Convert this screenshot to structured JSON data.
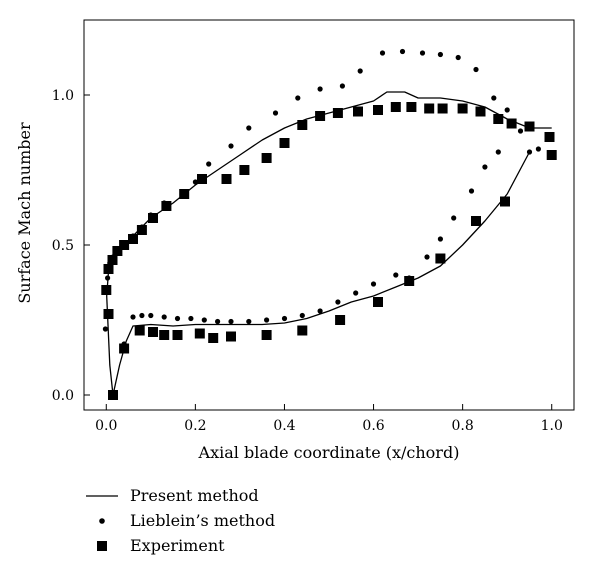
{
  "chart_data": {
    "type": "line",
    "title": "",
    "xlabel": "Axial blade coordinate (x/chord)",
    "ylabel": "Surface Mach number",
    "xlim": [
      -0.05,
      1.05
    ],
    "ylim": [
      -0.05,
      1.25
    ],
    "xticks": [
      0.0,
      0.2,
      0.4,
      0.6,
      0.8,
      1.0
    ],
    "yticks": [
      0.0,
      0.5,
      1.0
    ],
    "xtick_labels": [
      "0.0",
      "0.2",
      "0.4",
      "0.6",
      "0.8",
      "1.0"
    ],
    "ytick_labels": [
      "0.0",
      "0.5",
      "1.0"
    ],
    "grid": false,
    "legend_position": "bottom-left-outside",
    "series": [
      {
        "name": "Present method",
        "style": "line",
        "color": "#000000",
        "points": [
          [
            0.001,
            0.33
          ],
          [
            0.006,
            0.43
          ],
          [
            0.012,
            0.46
          ],
          [
            0.02,
            0.47
          ],
          [
            0.035,
            0.49
          ],
          [
            0.06,
            0.53
          ],
          [
            0.1,
            0.59
          ],
          [
            0.15,
            0.64
          ],
          [
            0.2,
            0.7
          ],
          [
            0.25,
            0.75
          ],
          [
            0.3,
            0.8
          ],
          [
            0.35,
            0.85
          ],
          [
            0.4,
            0.89
          ],
          [
            0.45,
            0.92
          ],
          [
            0.5,
            0.94
          ],
          [
            0.55,
            0.96
          ],
          [
            0.6,
            0.98
          ],
          [
            0.63,
            1.01
          ],
          [
            0.67,
            1.01
          ],
          [
            0.7,
            0.99
          ],
          [
            0.75,
            0.99
          ],
          [
            0.8,
            0.98
          ],
          [
            0.85,
            0.96
          ],
          [
            0.9,
            0.92
          ],
          [
            0.95,
            0.89
          ],
          [
            1.0,
            0.89
          ]
        ],
        "points_lower": [
          [
            0.001,
            0.33
          ],
          [
            0.008,
            0.1
          ],
          [
            0.015,
            0.0
          ],
          [
            0.03,
            0.1
          ],
          [
            0.045,
            0.18
          ],
          [
            0.06,
            0.23
          ],
          [
            0.1,
            0.235
          ],
          [
            0.15,
            0.23
          ],
          [
            0.2,
            0.235
          ],
          [
            0.25,
            0.235
          ],
          [
            0.3,
            0.235
          ],
          [
            0.35,
            0.235
          ],
          [
            0.4,
            0.24
          ],
          [
            0.45,
            0.255
          ],
          [
            0.5,
            0.28
          ],
          [
            0.55,
            0.31
          ],
          [
            0.6,
            0.33
          ],
          [
            0.65,
            0.36
          ],
          [
            0.7,
            0.39
          ],
          [
            0.75,
            0.43
          ],
          [
            0.8,
            0.5
          ],
          [
            0.85,
            0.58
          ],
          [
            0.9,
            0.67
          ],
          [
            0.95,
            0.81
          ]
        ]
      },
      {
        "name": "Lieblein’s method",
        "style": "dots",
        "color": "#000000",
        "points": [
          [
            -0.002,
            0.22
          ],
          [
            0.003,
            0.39
          ],
          [
            0.008,
            0.44
          ],
          [
            0.015,
            0.46
          ],
          [
            0.025,
            0.48
          ],
          [
            0.04,
            0.5
          ],
          [
            0.06,
            0.53
          ],
          [
            0.08,
            0.56
          ],
          [
            0.1,
            0.6
          ],
          [
            0.13,
            0.64
          ],
          [
            0.17,
            0.67
          ],
          [
            0.2,
            0.71
          ],
          [
            0.23,
            0.77
          ],
          [
            0.28,
            0.83
          ],
          [
            0.32,
            0.89
          ],
          [
            0.38,
            0.94
          ],
          [
            0.43,
            0.99
          ],
          [
            0.48,
            1.02
          ],
          [
            0.53,
            1.03
          ],
          [
            0.57,
            1.08
          ],
          [
            0.62,
            1.14
          ],
          [
            0.665,
            1.145
          ],
          [
            0.71,
            1.14
          ],
          [
            0.75,
            1.135
          ],
          [
            0.79,
            1.125
          ],
          [
            0.83,
            1.085
          ],
          [
            0.87,
            0.99
          ],
          [
            0.9,
            0.95
          ],
          [
            0.93,
            0.88
          ],
          [
            0.04,
            0.17
          ],
          [
            0.06,
            0.26
          ],
          [
            0.08,
            0.265
          ],
          [
            0.1,
            0.265
          ],
          [
            0.13,
            0.26
          ],
          [
            0.16,
            0.255
          ],
          [
            0.19,
            0.255
          ],
          [
            0.22,
            0.25
          ],
          [
            0.25,
            0.245
          ],
          [
            0.28,
            0.245
          ],
          [
            0.32,
            0.245
          ],
          [
            0.36,
            0.25
          ],
          [
            0.4,
            0.255
          ],
          [
            0.44,
            0.265
          ],
          [
            0.48,
            0.28
          ],
          [
            0.52,
            0.31
          ],
          [
            0.56,
            0.34
          ],
          [
            0.6,
            0.37
          ],
          [
            0.65,
            0.4
          ],
          [
            0.68,
            0.39
          ],
          [
            0.72,
            0.46
          ],
          [
            0.75,
            0.52
          ],
          [
            0.78,
            0.59
          ],
          [
            0.82,
            0.68
          ],
          [
            0.85,
            0.76
          ],
          [
            0.88,
            0.81
          ],
          [
            0.95,
            0.81
          ],
          [
            0.97,
            0.82
          ]
        ]
      },
      {
        "name": "Experiment",
        "style": "squares",
        "color": "#000000",
        "points": [
          [
            0.0,
            0.35
          ],
          [
            0.005,
            0.42
          ],
          [
            0.014,
            0.45
          ],
          [
            0.025,
            0.48
          ],
          [
            0.04,
            0.5
          ],
          [
            0.06,
            0.52
          ],
          [
            0.08,
            0.55
          ],
          [
            0.105,
            0.59
          ],
          [
            0.135,
            0.63
          ],
          [
            0.175,
            0.67
          ],
          [
            0.215,
            0.72
          ],
          [
            0.27,
            0.72
          ],
          [
            0.31,
            0.75
          ],
          [
            0.36,
            0.79
          ],
          [
            0.4,
            0.84
          ],
          [
            0.44,
            0.9
          ],
          [
            0.48,
            0.93
          ],
          [
            0.52,
            0.94
          ],
          [
            0.565,
            0.945
          ],
          [
            0.61,
            0.95
          ],
          [
            0.65,
            0.96
          ],
          [
            0.685,
            0.96
          ],
          [
            0.725,
            0.955
          ],
          [
            0.755,
            0.955
          ],
          [
            0.8,
            0.955
          ],
          [
            0.84,
            0.945
          ],
          [
            0.88,
            0.92
          ],
          [
            0.91,
            0.905
          ],
          [
            0.95,
            0.895
          ],
          [
            0.995,
            0.86
          ],
          [
            1.0,
            0.8
          ],
          [
            0.005,
            0.27
          ],
          [
            0.015,
            0.0
          ],
          [
            0.04,
            0.155
          ],
          [
            0.075,
            0.215
          ],
          [
            0.105,
            0.21
          ],
          [
            0.13,
            0.2
          ],
          [
            0.16,
            0.2
          ],
          [
            0.21,
            0.205
          ],
          [
            0.24,
            0.19
          ],
          [
            0.28,
            0.195
          ],
          [
            0.36,
            0.2
          ],
          [
            0.44,
            0.215
          ],
          [
            0.525,
            0.25
          ],
          [
            0.61,
            0.31
          ],
          [
            0.68,
            0.38
          ],
          [
            0.75,
            0.455
          ],
          [
            0.83,
            0.58
          ],
          [
            0.895,
            0.645
          ]
        ]
      }
    ]
  }
}
